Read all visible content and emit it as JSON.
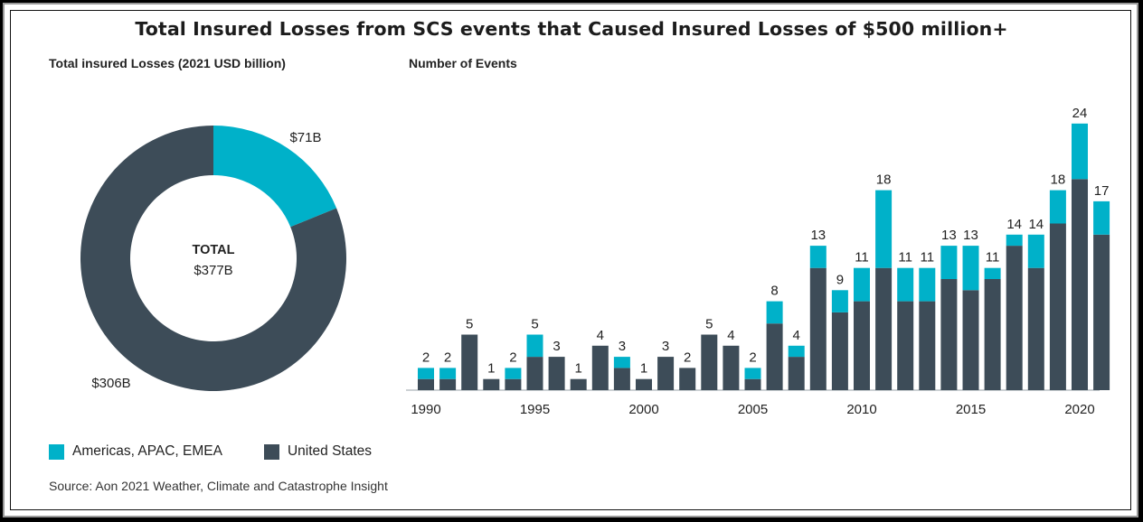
{
  "title": "Total Insured Losses from SCS events that Caused Insured Losses of $500 million+",
  "colors": {
    "americas_apac_emea": "#00b1c9",
    "united_states": "#3d4c58",
    "axis": "#9aa3a8",
    "text": "#222222"
  },
  "legend": {
    "items": [
      {
        "label": "Americas, APAC, EMEA",
        "color": "#00b1c9"
      },
      {
        "label": "United States",
        "color": "#3d4c58"
      }
    ]
  },
  "source": "Source: Aon 2021 Weather, Climate and Catastrophe Insight",
  "chart_data": [
    {
      "type": "pie",
      "title": "Total insured Losses (2021 USD billion)",
      "center_label": "TOTAL",
      "center_value": "$377B",
      "slices": [
        {
          "name": "Americas, APAC, EMEA",
          "value": 71,
          "label": "$71B"
        },
        {
          "name": "United States",
          "value": 306,
          "label": "$306B"
        }
      ]
    },
    {
      "type": "bar",
      "stacked": true,
      "title": "Number of Events",
      "x": [
        1990,
        1991,
        1992,
        1993,
        1994,
        1995,
        1996,
        1997,
        1998,
        1999,
        2000,
        2001,
        2002,
        2003,
        2004,
        2005,
        2006,
        2007,
        2008,
        2009,
        2010,
        2011,
        2012,
        2013,
        2014,
        2015,
        2016,
        2017,
        2018,
        2019,
        2020,
        2021
      ],
      "xticks": [
        1990,
        1995,
        2000,
        2005,
        2010,
        2015,
        2020
      ],
      "totals": [
        2,
        2,
        5,
        1,
        2,
        5,
        3,
        1,
        4,
        3,
        1,
        3,
        2,
        5,
        4,
        2,
        8,
        4,
        13,
        9,
        11,
        18,
        11,
        11,
        13,
        13,
        11,
        14,
        14,
        18,
        24,
        17
      ],
      "series": [
        {
          "name": "United States",
          "values": [
            1,
            1,
            5,
            1,
            1,
            3,
            3,
            1,
            4,
            2,
            1,
            3,
            2,
            5,
            4,
            1,
            6,
            3,
            11,
            7,
            8,
            11,
            8,
            8,
            10,
            9,
            10,
            13,
            11,
            15,
            19,
            14
          ]
        },
        {
          "name": "Americas, APAC, EMEA",
          "values": [
            1,
            1,
            0,
            0,
            1,
            2,
            0,
            0,
            0,
            1,
            0,
            0,
            0,
            0,
            0,
            1,
            2,
            1,
            2,
            2,
            3,
            7,
            3,
            3,
            3,
            4,
            1,
            1,
            3,
            3,
            5,
            3
          ]
        }
      ],
      "ylim": [
        0,
        26
      ],
      "grid": false
    }
  ]
}
